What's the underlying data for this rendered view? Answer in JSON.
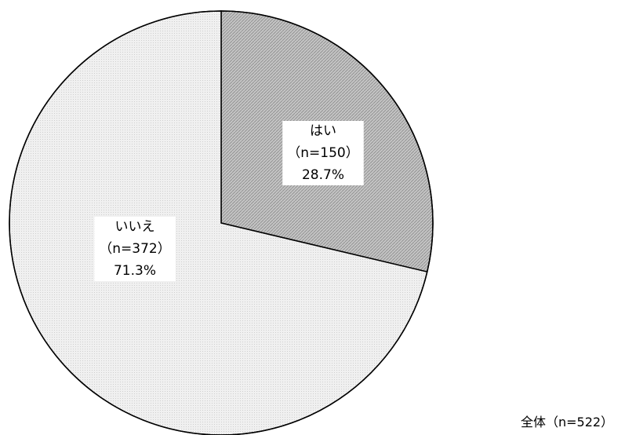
{
  "chart_data": {
    "type": "pie",
    "slices": [
      {
        "label": "はい",
        "count_text": "（n=150）",
        "value": 28.7,
        "percent_text": "28.7%",
        "fill": "#bdbdbd"
      },
      {
        "label": "いいえ",
        "count_text": "（n=372）",
        "value": 71.3,
        "percent_text": "71.3%",
        "fill": "#ececec"
      }
    ],
    "start_angle_deg": 0,
    "direction": "clockwise",
    "note": "全体（n=522）",
    "legend": "none"
  }
}
